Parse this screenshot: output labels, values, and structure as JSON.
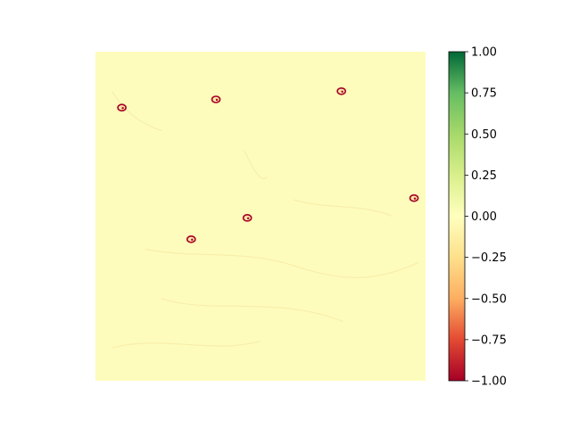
{
  "chart_data": {
    "type": "heatmap",
    "title": "",
    "xlabel": "",
    "ylabel": "",
    "axes_visible": false,
    "colormap": "RdYlGn",
    "value_range": [
      -1.0,
      1.0
    ],
    "colormap_stops": [
      {
        "value": -1.0,
        "color": "#a50026"
      },
      {
        "value": -0.75,
        "color": "#e34a33"
      },
      {
        "value": -0.5,
        "color": "#fdae61"
      },
      {
        "value": -0.25,
        "color": "#fee08b"
      },
      {
        "value": 0.0,
        "color": "#ffffbf"
      },
      {
        "value": 0.25,
        "color": "#d9ef8b"
      },
      {
        "value": 0.5,
        "color": "#a6d96a"
      },
      {
        "value": 0.75,
        "color": "#66bd63"
      },
      {
        "value": 1.0,
        "color": "#006837"
      }
    ],
    "background_value": 0.0,
    "background_color": "#fefcbc",
    "colorbar": {
      "ticks": [
        1.0,
        0.75,
        0.5,
        0.25,
        0.0,
        -0.25,
        -0.5,
        -0.75,
        -1.0
      ],
      "tick_labels": [
        "1.00",
        "0.75",
        "0.50",
        "0.25",
        "0.00",
        "−0.25",
        "−0.50",
        "−0.75",
        "−1.00"
      ],
      "placement": "right"
    },
    "hotspots": [
      {
        "name": "hotspot-upper-left",
        "x": 0.08,
        "y": 0.17,
        "value": -1.0
      },
      {
        "name": "hotspot-top-center",
        "x": 0.365,
        "y": 0.145,
        "value": -1.0
      },
      {
        "name": "hotspot-top-right",
        "x": 0.745,
        "y": 0.12,
        "value": -1.0
      },
      {
        "name": "hotspot-right-edge",
        "x": 0.965,
        "y": 0.445,
        "value": -1.0
      },
      {
        "name": "hotspot-center-small",
        "x": 0.46,
        "y": 0.505,
        "value": -1.0
      },
      {
        "name": "hotspot-lower-left",
        "x": 0.29,
        "y": 0.57,
        "value": -1.0
      }
    ]
  }
}
